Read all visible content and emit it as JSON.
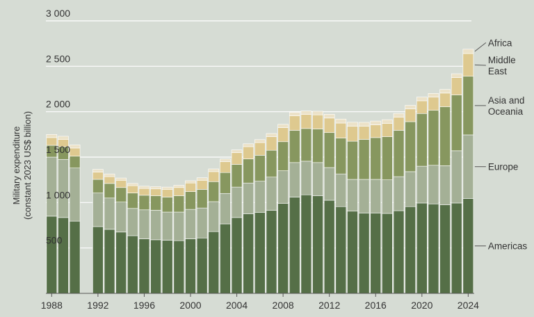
{
  "chart_data": {
    "type": "bar",
    "stacked": true,
    "title": "",
    "xlabel": "",
    "ylabel_lines": [
      "Military expenditure",
      "(constant 2023 US$ billion)"
    ],
    "ylim": [
      0,
      3000
    ],
    "yticks": [
      500,
      1000,
      1500,
      2000,
      2500,
      3000
    ],
    "ytick_labels": [
      "500",
      "1 000",
      "1 500",
      "2 000",
      "2 500",
      "3 000"
    ],
    "xticks": [
      1988,
      1992,
      1996,
      2000,
      2004,
      2008,
      2012,
      2016,
      2020,
      2024
    ],
    "xtick_labels": [
      "1988",
      "1992",
      "1996",
      "2000",
      "2004",
      "2008",
      "2012",
      "2016",
      "2020",
      "2024"
    ],
    "grid": "horizontal",
    "legend": "right, labels beside last bar",
    "categories": [
      1988,
      1989,
      1990,
      1992,
      1993,
      1994,
      1995,
      1996,
      1997,
      1998,
      1999,
      2000,
      2001,
      2002,
      2003,
      2004,
      2005,
      2006,
      2007,
      2008,
      2009,
      2010,
      2011,
      2012,
      2013,
      2014,
      2015,
      2016,
      2017,
      2018,
      2019,
      2020,
      2021,
      2022,
      2023,
      2024
    ],
    "series": [
      {
        "name": "Americas",
        "color": "#556f47",
        "values": [
          850,
          835,
          795,
          735,
          705,
          675,
          635,
          600,
          590,
          585,
          580,
          600,
          610,
          680,
          765,
          835,
          875,
          890,
          915,
          990,
          1060,
          1085,
          1075,
          1025,
          955,
          905,
          885,
          885,
          880,
          910,
          955,
          995,
          985,
          975,
          995,
          1045
        ]
      },
      {
        "name": "Europe",
        "color": "#a4b096",
        "values": [
          650,
          640,
          585,
          370,
          345,
          330,
          300,
          320,
          325,
          310,
          315,
          325,
          330,
          330,
          335,
          335,
          340,
          345,
          365,
          360,
          380,
          370,
          365,
          360,
          360,
          350,
          370,
          370,
          370,
          375,
          385,
          405,
          425,
          430,
          575,
          700
        ]
      },
      {
        "name": "Asia and Oceania",
        "color": "#87975f",
        "values": [
          130,
          140,
          130,
          150,
          160,
          160,
          170,
          160,
          160,
          165,
          180,
          195,
          205,
          220,
          230,
          250,
          265,
          285,
          295,
          320,
          355,
          360,
          370,
          385,
          395,
          420,
          440,
          460,
          475,
          510,
          550,
          580,
          605,
          650,
          615,
          645
        ]
      },
      {
        "name": "Middle East",
        "color": "#dec98f",
        "values": [
          85,
          80,
          90,
          80,
          75,
          80,
          80,
          75,
          75,
          85,
          90,
          95,
          100,
          110,
          120,
          130,
          135,
          140,
          150,
          155,
          160,
          155,
          155,
          160,
          165,
          165,
          145,
          140,
          145,
          145,
          140,
          140,
          145,
          150,
          190,
          250
        ]
      },
      {
        "name": "Africa",
        "color": "#ece2c8",
        "values": [
          35,
          35,
          35,
          30,
          30,
          25,
          25,
          25,
          25,
          25,
          25,
          25,
          28,
          30,
          30,
          30,
          32,
          33,
          35,
          36,
          38,
          38,
          40,
          42,
          44,
          44,
          43,
          42,
          42,
          41,
          40,
          41,
          41,
          40,
          43,
          48
        ]
      }
    ]
  }
}
